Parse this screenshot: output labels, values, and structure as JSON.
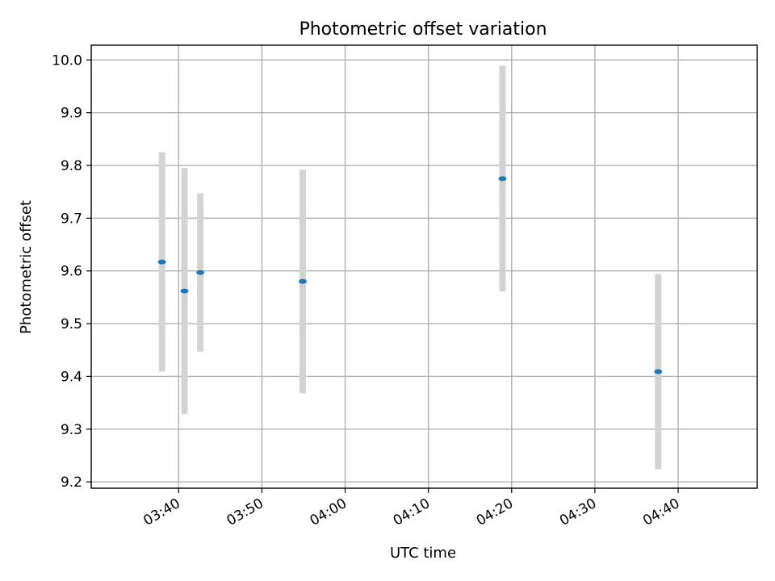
{
  "chart_data": {
    "type": "scatter",
    "title": "Photometric offset variation",
    "xlabel": "UTC time",
    "ylabel": "Photometric offset",
    "x_ticks": [
      "03:40",
      "03:50",
      "04:00",
      "04:10",
      "04:20",
      "04:30",
      "04:40"
    ],
    "x_tick_minutes": [
      220,
      230,
      240,
      250,
      260,
      270,
      280
    ],
    "y_ticks": [
      "9.2",
      "9.3",
      "9.4",
      "9.5",
      "9.6",
      "9.7",
      "9.8",
      "9.9",
      "10.0"
    ],
    "xlim_minutes": [
      209.5,
      289.5
    ],
    "ylim": [
      9.188,
      10.028
    ],
    "grid": true,
    "points": [
      {
        "time": "03:38",
        "minutes": 218.0,
        "y": 9.617,
        "err": 0.208
      },
      {
        "time": "03:40:42",
        "minutes": 220.7,
        "y": 9.562,
        "err": 0.233
      },
      {
        "time": "03:42:36",
        "minutes": 222.6,
        "y": 9.597,
        "err": 0.15
      },
      {
        "time": "03:54:54",
        "minutes": 234.9,
        "y": 9.58,
        "err": 0.212
      },
      {
        "time": "04:18:54",
        "minutes": 258.9,
        "y": 9.775,
        "err": 0.214
      },
      {
        "time": "04:37:36",
        "minutes": 277.6,
        "y": 9.409,
        "err": 0.185
      }
    ],
    "colors": {
      "marker": "#1f77b4",
      "errorbar": "#d3d3d3"
    }
  }
}
